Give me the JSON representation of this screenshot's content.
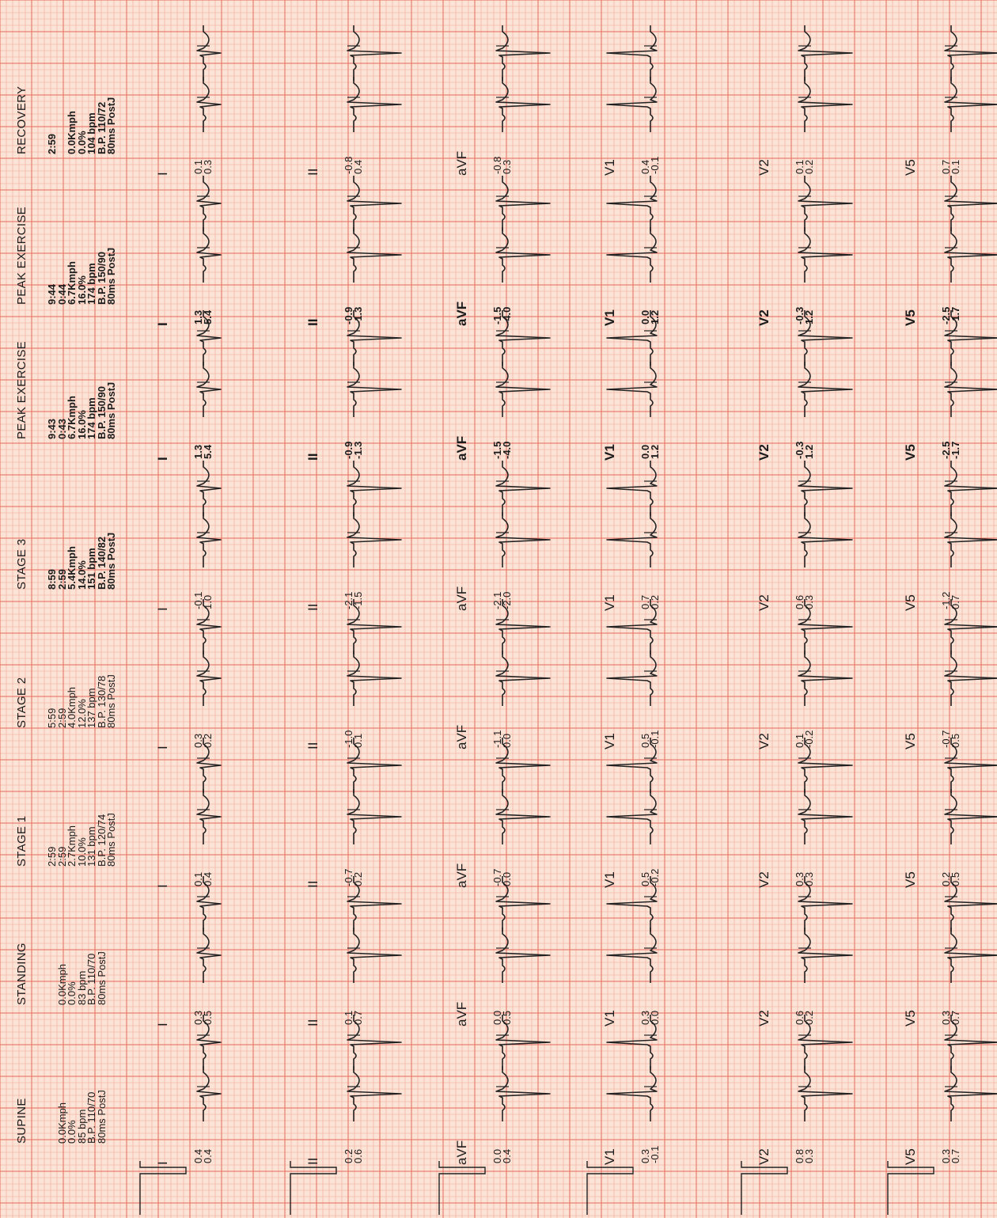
{
  "stages": [
    {
      "title": "SUPINE",
      "info": [
        "",
        "0.0Kmph",
        "0.0%",
        "85 bpm",
        "B.P. 110/70",
        "80ms PostJ"
      ]
    },
    {
      "title": "STANDING",
      "info": [
        "",
        "0.0Kmph",
        "0.0%",
        "83 bpm",
        "B.P. 110/70",
        "80ms PostJ"
      ]
    },
    {
      "title": "STAGE 1",
      "info": [
        "2:59",
        "2:59",
        "2.7Kmph",
        "10.0%",
        "131 bpm",
        "B.P. 120/74",
        "80ms PostJ"
      ]
    },
    {
      "title": "STAGE 2",
      "info": [
        "5:59",
        "2:59",
        "4.0Kmph",
        "12.0%",
        "137 bpm",
        "B.P. 130/78",
        "80ms PostJ"
      ]
    },
    {
      "title": "STAGE 3",
      "info": [
        "8:59",
        "2:59",
        "5.4Kmph",
        "14.0%",
        "151 bpm",
        "B.P. 140/82",
        "80ms PostJ"
      ]
    },
    {
      "title": "PEAK EXERCISE",
      "info": [
        "9:43",
        "0:43",
        "6.7Kmph",
        "16.0%",
        "174 bpm",
        "B.P. 150/90",
        "80ms PostJ"
      ]
    },
    {
      "title": "PEAK EXERCISE",
      "info": [
        "9:44",
        "0:44",
        "6.7Kmph",
        "16.0%",
        "174 bpm",
        "B.P. 150/90",
        "80ms PostJ"
      ]
    },
    {
      "title": "RECOVERY",
      "info": [
        "2:59",
        "",
        "0.0Kmph",
        "0.0%",
        "104 bpm",
        "B.P. 110/72",
        "80ms PostJ"
      ]
    }
  ],
  "leads": [
    "I",
    "II",
    "aVF",
    "V1",
    "V2",
    "V5"
  ],
  "st_values": [
    [
      [
        "0.4",
        "0.4"
      ],
      [
        "0.2",
        "0.6"
      ],
      [
        "0.0",
        "0.4"
      ],
      [
        "0.3",
        "-0.1"
      ],
      [
        "0.8",
        "0.3"
      ],
      [
        "0.3",
        "0.7"
      ]
    ],
    [
      [
        "0.3",
        "0.5"
      ],
      [
        "0.1",
        "0.7"
      ],
      [
        "0.0",
        "0.5"
      ],
      [
        "0.3",
        "0.0"
      ],
      [
        "0.6",
        "0.2"
      ],
      [
        "0.3",
        "0.7"
      ]
    ],
    [
      [
        "0.1",
        "0.4"
      ],
      [
        "-0.7",
        "0.2"
      ],
      [
        "-0.7",
        "0.0"
      ],
      [
        "0.5",
        "-0.2"
      ],
      [
        "0.3",
        "0.3"
      ],
      [
        "0.2",
        "0.5"
      ]
    ],
    [
      [
        "0.3",
        "0.2"
      ],
      [
        "-1.0",
        "0.1"
      ],
      [
        "-1.1",
        "0.0"
      ],
      [
        "0.5",
        "-0.1"
      ],
      [
        "0.1",
        "-0.2"
      ],
      [
        "-0.7",
        "0.5"
      ]
    ],
    [
      [
        "-0.1",
        "1.0"
      ],
      [
        "-2.1",
        "-1.5"
      ],
      [
        "-2.1",
        "-2.0"
      ],
      [
        "0.7",
        "0.2"
      ],
      [
        "0.6",
        "0.3"
      ],
      [
        "-1.2",
        "0.7"
      ]
    ],
    [
      [
        "1.3",
        "5.4"
      ],
      [
        "-0.9",
        "-1.3"
      ],
      [
        "-1.5",
        "-4.0"
      ],
      [
        "0.0",
        "1.2"
      ],
      [
        "-0.3",
        "1.2"
      ],
      [
        "-2.5",
        "-1.7"
      ]
    ],
    [
      [
        "1.3",
        "5.4"
      ],
      [
        "-0.9",
        "-1.3"
      ],
      [
        "-1.5",
        "-4.0"
      ],
      [
        "0.0",
        "1.2"
      ],
      [
        "-0.3",
        "1.2"
      ],
      [
        "-2.5",
        "-1.7"
      ]
    ],
    [
      [
        "0.1",
        "0.3"
      ],
      [
        "-0.8",
        "0.4"
      ],
      [
        "-0.8",
        "0.3"
      ],
      [
        "0.4",
        "-0.1"
      ],
      [
        "0.1",
        "0.2"
      ],
      [
        "0.7",
        "0.1"
      ]
    ]
  ],
  "colors": {
    "paper": "#fbe3d6",
    "grid_minor": "#f2a898",
    "grid_major": "#e46a5c",
    "trace": "#222222"
  }
}
